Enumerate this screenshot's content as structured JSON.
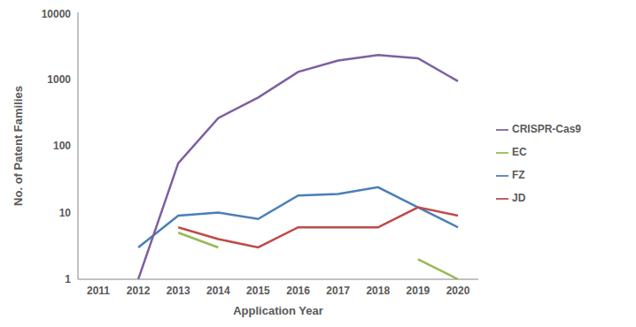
{
  "chart_data": {
    "type": "line",
    "x_label": "Application Year",
    "y_label": "No. of Patent Families",
    "categories": [
      "2011",
      "2012",
      "2013",
      "2014",
      "2015",
      "2016",
      "2017",
      "2018",
      "2019",
      "2020"
    ],
    "series": [
      {
        "name": "FZ",
        "color": "#4a7ebb",
        "values": [
          null,
          3,
          9,
          10,
          8,
          18,
          19,
          24,
          12,
          6
        ]
      },
      {
        "name": "JD",
        "color": "#be4b48",
        "values": [
          null,
          null,
          6,
          4,
          3,
          6,
          6,
          6,
          12,
          9
        ]
      },
      {
        "name": "EC",
        "color": "#98b954",
        "values": [
          null,
          null,
          5,
          3,
          null,
          null,
          null,
          null,
          2,
          1
        ]
      },
      {
        "name": "CRISPR-Cas9",
        "color": "#7d60a0",
        "values": [
          null,
          1,
          55,
          260,
          530,
          1280,
          1900,
          2300,
          2050,
          930
        ]
      }
    ],
    "ylim": [
      1,
      10000
    ],
    "yticks": [
      1,
      10,
      100,
      1000,
      10000
    ],
    "log": "y",
    "grid": false,
    "legend": "right"
  }
}
